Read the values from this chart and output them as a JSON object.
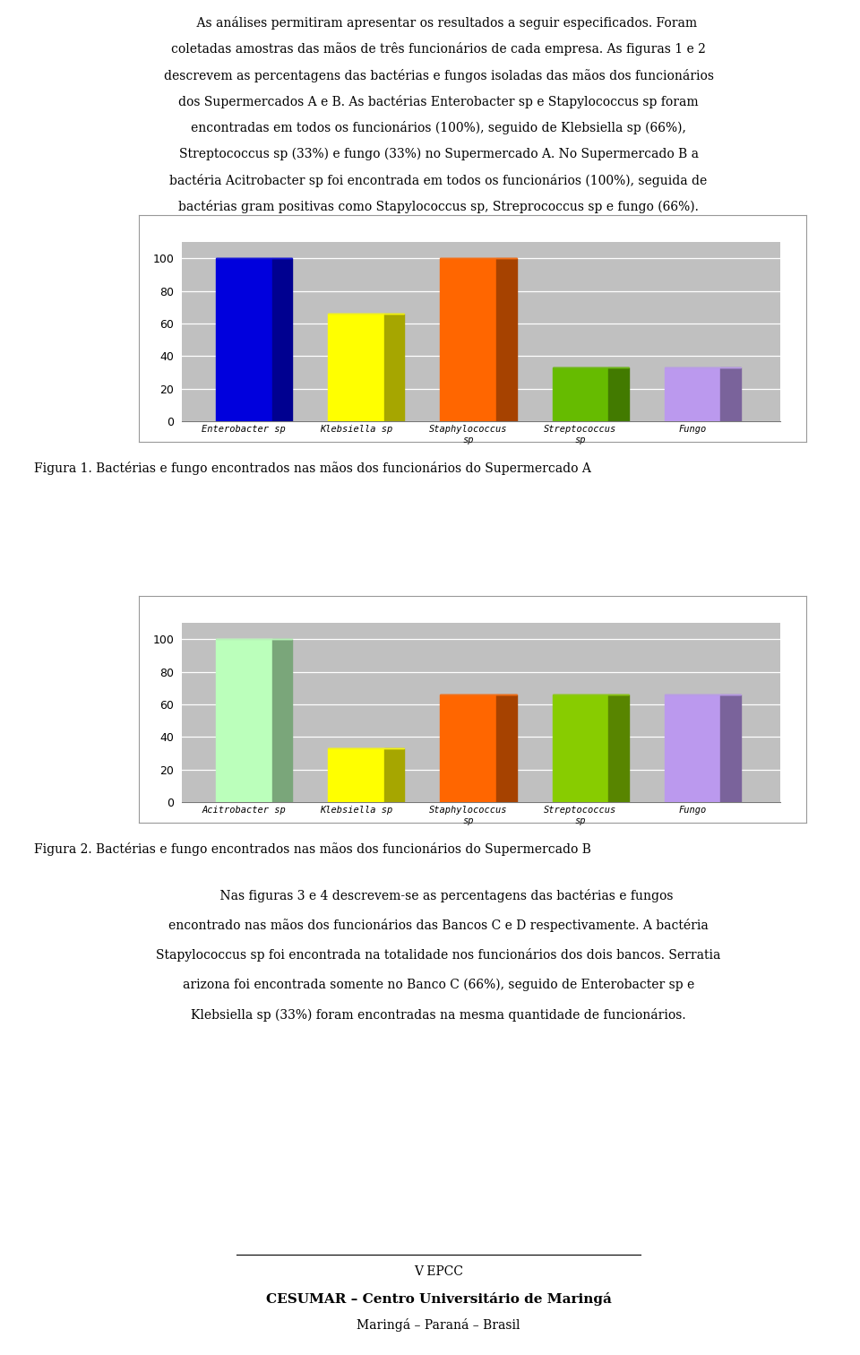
{
  "chart1": {
    "categories": [
      "Enterobacter sp",
      "Klebsiella sp",
      "Staphylococcus\nsp",
      "Streptococcus\nsp",
      "Fungo"
    ],
    "values": [
      100,
      66,
      100,
      33,
      33
    ],
    "colors": [
      "#0000DD",
      "#FFFF00",
      "#FF6600",
      "#66BB00",
      "#BB99EE"
    ],
    "ylim": [
      0,
      100
    ],
    "yticks": [
      0,
      20,
      40,
      60,
      80,
      100
    ],
    "caption": "Figura 1. Bactérias e fungo encontrados nas mãos dos funcionários do Supermercado A"
  },
  "chart2": {
    "categories": [
      "Acitrobacter sp",
      "Klebsiella sp",
      "Staphylococcus\nsp",
      "Streptococcus\nsp",
      "Fungo"
    ],
    "values": [
      100,
      33,
      66,
      66,
      66
    ],
    "colors": [
      "#BBFFBB",
      "#FFFF00",
      "#FF6600",
      "#88CC00",
      "#BB99EE"
    ],
    "ylim": [
      0,
      100
    ],
    "yticks": [
      0,
      20,
      40,
      60,
      80,
      100
    ],
    "caption": "Figura 2. Bactérias e fungo encontrados nas mãos dos funcionários do Supermercado B"
  },
  "header_lines": [
    [
      "normal",
      "    As análises permitiram apresentar os resultados a seguir especificados. Foram"
    ],
    [
      "normal",
      "coletadas amostras das mãos de ",
      "bold",
      "três",
      "normal",
      " funcionários de cada ",
      "bold",
      "empresa",
      "normal",
      ". As figuras 1 e 2"
    ],
    [
      "normal",
      "descrevem as percentagens das bactérias e fungos isoladas das mãos dos funcionários"
    ],
    [
      "normal",
      "dos Supermercados A e B. As bactérias ",
      "italic",
      "Enterobacter sp",
      "normal",
      " e ",
      "italic",
      "Stapylococcus sp",
      "normal",
      " foram"
    ],
    [
      "normal",
      "encontradas em todos os funcionários (100%), seguido de ",
      "italic",
      "Klebsiella sp",
      "normal",
      " (66%),"
    ],
    [
      "normal",
      "Streptococcus sp (33%) e fungo (33%) no Supermercado A. No Supermercado B a"
    ],
    [
      "normal",
      "bactéria ",
      "italic",
      "Acitrobacter sp",
      "normal",
      " foi encontrada em todos os funcionários (100%), seguida de"
    ],
    [
      "normal",
      "bactérias gram positivas como ",
      "italic",
      "Stapylococcus sp",
      "normal",
      ", ",
      "italic",
      "Streprococcus sp",
      "normal",
      " e fungo (66%)."
    ]
  ],
  "body_lines": [
    [
      "normal",
      "    Nas figuras 3 e 4 descrevem-se as percentagens das bactérias e fungos"
    ],
    [
      "normal",
      "encontrado nas mãos dos funcionários das Bancos C e D respectivamente. A bactéria"
    ],
    [
      "italic",
      "Stapylococcus sp",
      "normal",
      " foi encontrada na totalidade nos funcionários dos dois bancos. ",
      "italic",
      "Serratia"
    ],
    [
      "italic",
      "arizona",
      "normal",
      " foi encontrada somente no Banco C (66%), seguido de ",
      "italic",
      "Enterobacter sp",
      "normal",
      " e"
    ],
    [
      "italic",
      "Klebsiella sp",
      "normal",
      " (33%) foram encontradas na mesma quantidade de funcionários."
    ]
  ],
  "footer_lines": [
    "V EPCC",
    "CESUMAR – Centro Universitário de Maringá",
    "Maringá – Paraná – Brasil"
  ],
  "background_color": "#FFFFFF",
  "chart_bg_color": "#C0C0C0"
}
